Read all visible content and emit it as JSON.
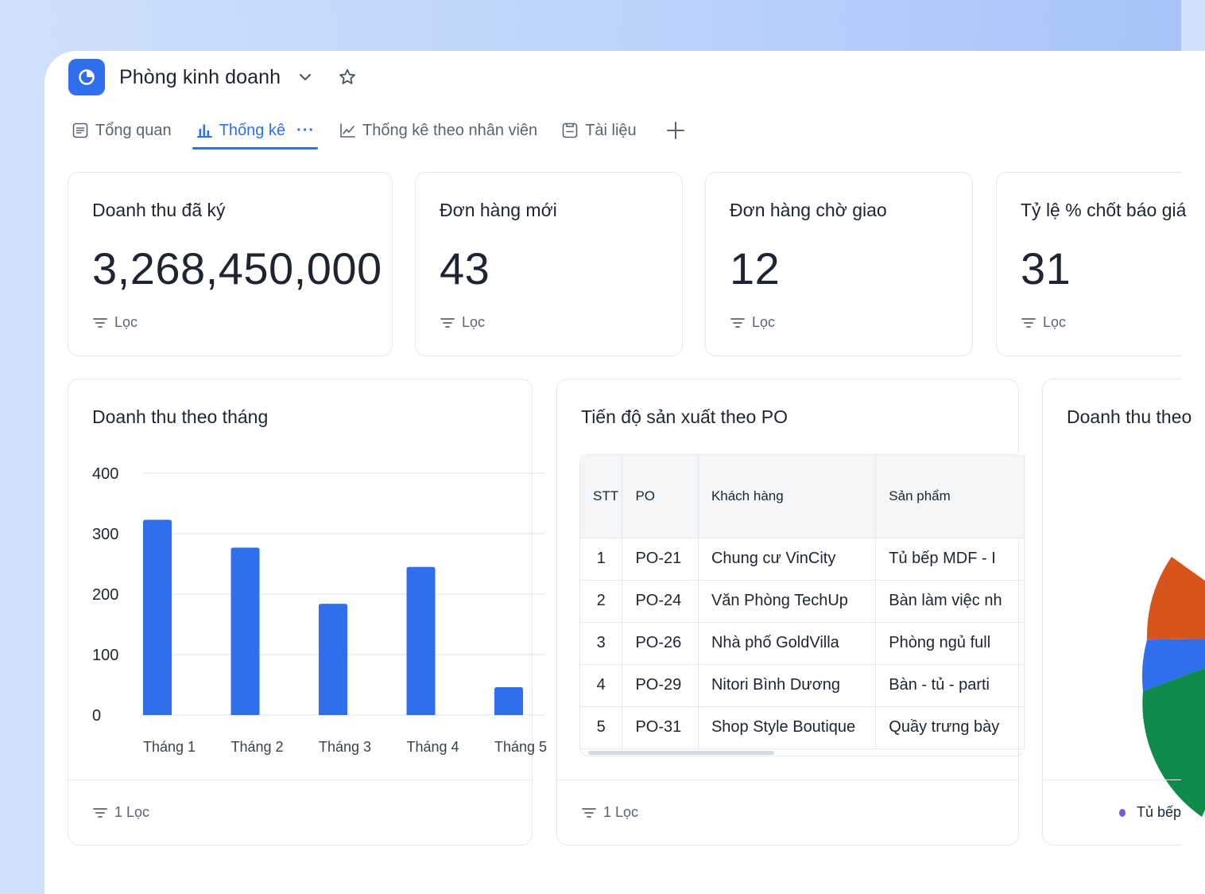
{
  "header": {
    "title": "Phòng kinh doanh"
  },
  "tabs": [
    {
      "label": "Tổng quan",
      "icon": "document-icon",
      "active": false
    },
    {
      "label": "Thống kê",
      "icon": "bar-chart-icon",
      "active": true,
      "more": "···"
    },
    {
      "label": "Thống kê theo nhân viên",
      "icon": "line-chart-icon",
      "active": false
    },
    {
      "label": "Tài liệu",
      "icon": "file-icon",
      "active": false
    }
  ],
  "kpis": [
    {
      "title": "Doanh thu đã ký",
      "value": "3,268,450,000",
      "filter": "Lọc"
    },
    {
      "title": "Đơn hàng mới",
      "value": "43",
      "filter": "Lọc"
    },
    {
      "title": "Đơn hàng chờ giao",
      "value": "12",
      "filter": "Lọc"
    },
    {
      "title": "Tỷ lệ % chốt báo giá",
      "value": "31",
      "filter": "Lọc"
    }
  ],
  "revenue_panel": {
    "title": "Doanh thu theo tháng",
    "filter": "1 Lọc"
  },
  "chart_data": {
    "type": "bar",
    "categories": [
      "Tháng 1",
      "Tháng 2",
      "Tháng 3",
      "Tháng 4",
      "Tháng 5"
    ],
    "values": [
      323,
      277,
      184,
      245,
      46
    ],
    "ylim": [
      0,
      400
    ],
    "yticks": [
      0,
      100,
      200,
      300,
      400
    ],
    "color": "#2f6fed",
    "grid": true
  },
  "po_panel": {
    "title": "Tiến độ sản xuất theo PO",
    "filter": "1 Lọc",
    "columns": [
      "STT",
      "PO",
      "Khách hàng",
      "Sản phẩm"
    ],
    "rows": [
      [
        "1",
        "PO-21",
        "Chung cư VinCity",
        "Tủ bếp MDF - I"
      ],
      [
        "2",
        "PO-24",
        "Văn Phòng TechUp",
        "Bàn làm việc nh"
      ],
      [
        "3",
        "PO-26",
        "Nhà phố GoldVilla",
        "Phòng ngủ full"
      ],
      [
        "4",
        "PO-29",
        "Nitori Bình Dương",
        "Bàn - tủ - parti"
      ],
      [
        "5",
        "PO-31",
        "Shop Style Boutique",
        "Quầy trưng bày"
      ]
    ]
  },
  "pie_panel": {
    "title": "Doanh thu theo",
    "legend": [
      {
        "label": "Tủ bếp",
        "color": "#7b5cd6"
      }
    ],
    "slices_colors": [
      "#d9541a",
      "#2f6fed",
      "#0e8a4b"
    ]
  },
  "colors": {
    "accent": "#2f6fed",
    "border": "#e4e7ec",
    "text": "#1f2430",
    "muted": "#5c6370"
  }
}
